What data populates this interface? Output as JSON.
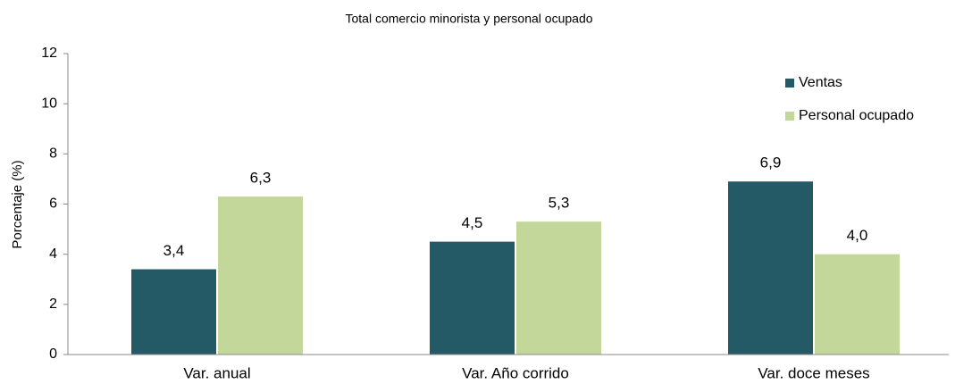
{
  "chart_data": {
    "type": "bar",
    "title": "Total comercio minorista y personal ocupado",
    "y_label": "Porcentaje (%)",
    "categories": [
      "Var. anual",
      "Var. Año corrido",
      "Var. doce meses"
    ],
    "series": [
      {
        "name": "Ventas",
        "color": "#235a66",
        "values": [
          3.4,
          4.5,
          6.9
        ],
        "value_labels": [
          "3,4",
          "4,5",
          "6,9"
        ]
      },
      {
        "name": "Personal ocupado",
        "color": "#c4d79b",
        "values": [
          6.3,
          5.3,
          4.0
        ],
        "value_labels": [
          "6,3",
          "5,3",
          "4,0"
        ]
      }
    ],
    "ylim": [
      0,
      12
    ],
    "yticks": [
      0,
      2,
      4,
      6,
      8,
      10,
      12
    ],
    "legend": "top-right",
    "grid": false
  }
}
